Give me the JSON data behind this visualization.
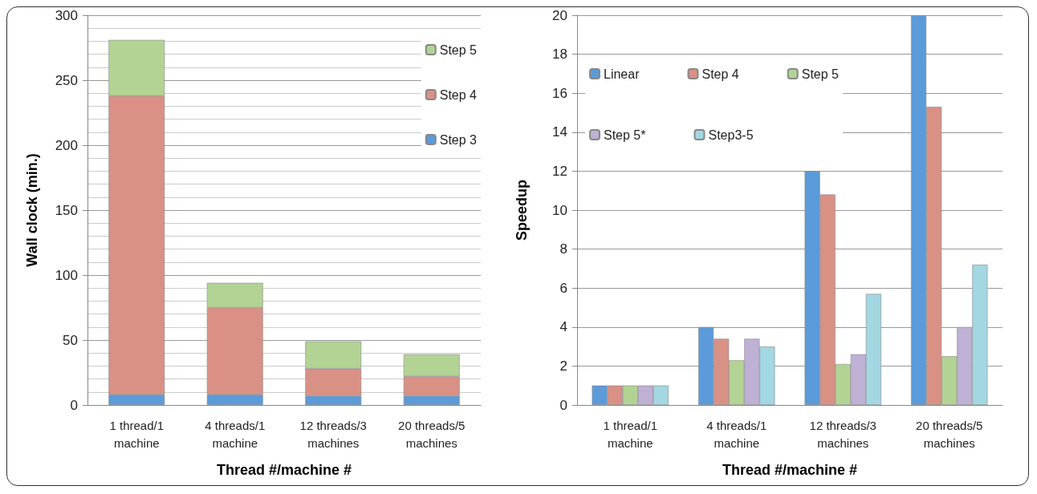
{
  "chart_data": [
    {
      "type": "bar",
      "stacked": true,
      "xlabel": "Thread #/machine #",
      "ylabel": "Wall clock (min.)",
      "categories": [
        "1 thread/1\nmachine",
        "4 threads/1\nmachine",
        "12 threads/3\nmachines",
        "20 threads/5\nmachines"
      ],
      "series": [
        {
          "name": "Step 3",
          "color": "#5b9bd9",
          "values": [
            8,
            8,
            7,
            7
          ]
        },
        {
          "name": "Step 4",
          "color": "#d99185",
          "values": [
            230,
            67,
            21,
            15
          ]
        },
        {
          "name": "Step 5",
          "color": "#b3d395",
          "values": [
            43,
            19,
            21,
            17
          ]
        }
      ],
      "ylim": [
        0,
        300
      ],
      "yticks": [
        0,
        50,
        100,
        150,
        200,
        250,
        300
      ],
      "grid": "y",
      "legend": "top right"
    },
    {
      "type": "bar",
      "xlabel": "Thread #/machine #",
      "ylabel": "Speedup",
      "categories": [
        "1 thread/1\nmachine",
        "4 threads/1\nmachine",
        "12 threads/3\nmachines",
        "20 threads/5\nmachines"
      ],
      "series": [
        {
          "name": "Linear",
          "color": "#5b9bd9",
          "values": [
            1,
            4,
            12,
            20
          ]
        },
        {
          "name": "Step 4",
          "color": "#d99185",
          "values": [
            1,
            3.4,
            10.8,
            15.3
          ]
        },
        {
          "name": "Step 5",
          "color": "#b3d395",
          "values": [
            1,
            2.3,
            2.1,
            2.5
          ]
        },
        {
          "name": "Step 5*",
          "color": "#bfb0d5",
          "values": [
            1,
            3.4,
            2.6,
            4.0
          ]
        },
        {
          "name": "Step3-5",
          "color": "#a3d7e2",
          "values": [
            1,
            3.0,
            5.7,
            7.2
          ]
        }
      ],
      "ylim": [
        0,
        20
      ],
      "yticks": [
        0,
        2,
        4,
        6,
        8,
        10,
        12,
        14,
        16,
        18,
        20
      ],
      "grid": "y",
      "legend": "top left"
    }
  ]
}
